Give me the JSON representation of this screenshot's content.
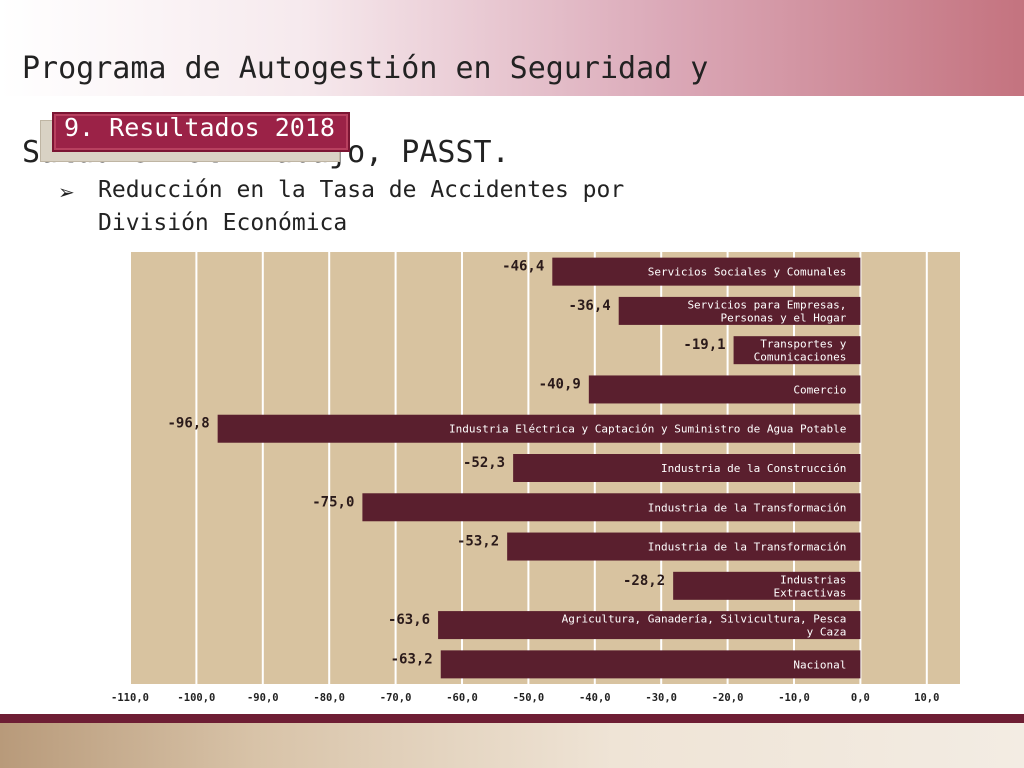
{
  "title": {
    "line1": "Programa de Autogestión en Seguridad y",
    "line2": "Salud en el Trabajo, PASST."
  },
  "section": {
    "label": "9. Resultados 2018"
  },
  "bullet": {
    "text": "Reducción en la Tasa de Accidentes por División Económica"
  },
  "colors": {
    "bar": "#5a1f2e",
    "plot_bg": "#d8c3a0",
    "grid": "#ffffff",
    "accent": "#9b2247"
  },
  "chart_data": {
    "type": "bar",
    "orientation": "horizontal",
    "categories": [
      "Servicios Sociales y Comunales",
      "Servicios  para Empresas,\nPersonas y el Hogar",
      "Transportes y\nComunicaciones",
      "Comercio",
      "Industria Eléctrica y Captación y Suministro de Agua Potable",
      "Industria de la  Construcción",
      "Industria de la Transformación",
      "Industria de la Transformación",
      "Industrias\nExtractivas",
      "Agricultura, Ganadería, Silvicultura, Pesca\ny Caza",
      "Nacional"
    ],
    "values": [
      -46.4,
      -36.4,
      -19.1,
      -40.9,
      -96.8,
      -52.3,
      -75.0,
      -53.2,
      -28.2,
      -63.6,
      -63.2
    ],
    "value_labels": [
      "-46,4",
      "-36,4",
      "-19,1",
      "-40,9",
      "-96,8",
      "-52,3",
      "-75,0",
      "-53,2",
      "-28,2",
      "-63,6",
      "-63,2"
    ],
    "xlim": [
      -110,
      15
    ],
    "xticks": [
      -110,
      -100,
      -90,
      -80,
      -70,
      -60,
      -50,
      -40,
      -30,
      -20,
      -10,
      0,
      10
    ],
    "xtick_labels": [
      "-110,0",
      "-100,0",
      "-90,0",
      "-80,0",
      "-70,0",
      "-60,0",
      "-50,0",
      "-40,0",
      "-30,0",
      "-20,0",
      "-10,0",
      "0,0",
      "10,0"
    ],
    "grid": true,
    "legend": false,
    "title": "",
    "xlabel": "",
    "ylabel": ""
  }
}
